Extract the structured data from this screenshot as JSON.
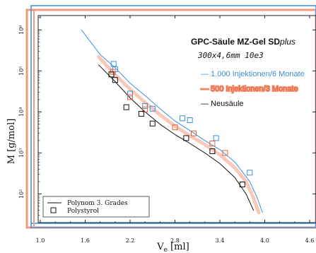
{
  "chart_data": {
    "type": "line",
    "title": "GPC-Säule MZ-Gel SDplus",
    "subtitle": "300x4,6mm 10e3",
    "xlabel": "Ve [ml]",
    "ylabel": "M [g/mol]",
    "xlim": [
      1.0,
      4.6
    ],
    "ylim_log10": [
      1.3,
      6.35
    ],
    "x_ticks": [
      "1.0",
      "1.6",
      "2.2",
      "2.8",
      "3.4",
      "4.0",
      "4.6"
    ],
    "x_tick_values": [
      1.0,
      1.6,
      2.2,
      2.8,
      3.4,
      4.0,
      4.6
    ],
    "y_ticks": [
      "10²",
      "10³",
      "10⁴",
      "10⁵",
      "10⁶"
    ],
    "y_tick_values": [
      100,
      1000,
      10000,
      100000,
      1000000
    ],
    "y_scale": "log",
    "grid": false,
    "legend_position": "top-right",
    "colors": {
      "series_1000": "#3b8fd9",
      "series_500": "#f29a7d",
      "series_new": "#111111",
      "frame_blue": "#3b8fd9",
      "frame_orange": "#f29a7d"
    },
    "series": [
      {
        "name": "1.000 Injektionen/6 Monate",
        "color": "#3b8fd9",
        "curve": [
          [
            1.55,
            1000000
          ],
          [
            1.8,
            250000
          ],
          [
            2.0,
            120000
          ],
          [
            2.2,
            50000
          ],
          [
            2.4,
            25000
          ],
          [
            2.6,
            12000
          ],
          [
            2.8,
            6000
          ],
          [
            3.0,
            3500
          ],
          [
            3.2,
            2000
          ],
          [
            3.4,
            1200
          ],
          [
            3.6,
            600
          ],
          [
            3.8,
            200
          ],
          [
            3.9,
            80
          ],
          [
            3.97,
            35
          ]
        ],
        "points": [
          [
            1.98,
            148000
          ],
          [
            2.0,
            110000
          ],
          [
            2.2,
            28000
          ],
          [
            2.4,
            14000
          ],
          [
            2.5,
            12000
          ],
          [
            2.9,
            7000
          ],
          [
            3.0,
            6300
          ],
          [
            3.35,
            2300
          ],
          [
            3.8,
            330
          ]
        ]
      },
      {
        "name": "500 Injektionen/3 Monate",
        "color": "#f29a7d",
        "curve": [
          [
            1.78,
            220000
          ],
          [
            2.0,
            80000
          ],
          [
            2.2,
            36000
          ],
          [
            2.4,
            17000
          ],
          [
            2.6,
            8500
          ],
          [
            2.8,
            4500
          ],
          [
            3.0,
            2600
          ],
          [
            3.2,
            1600
          ],
          [
            3.4,
            900
          ],
          [
            3.6,
            430
          ],
          [
            3.75,
            200
          ],
          [
            3.85,
            80
          ],
          [
            3.92,
            35
          ]
        ],
        "points": [
          [
            1.97,
            95000
          ],
          [
            2.2,
            23000
          ],
          [
            2.4,
            11500
          ],
          [
            2.8,
            4200
          ],
          [
            3.05,
            3000
          ],
          [
            3.3,
            1700
          ],
          [
            3.47,
            1000
          ]
        ]
      },
      {
        "name": "Neusäule",
        "color": "#111111",
        "curve": [
          [
            1.78,
            140000
          ],
          [
            2.0,
            55000
          ],
          [
            2.2,
            22000
          ],
          [
            2.4,
            10000
          ],
          [
            2.6,
            5000
          ],
          [
            2.8,
            2800
          ],
          [
            3.0,
            1700
          ],
          [
            3.2,
            1000
          ],
          [
            3.4,
            550
          ],
          [
            3.6,
            250
          ],
          [
            3.75,
            100
          ],
          [
            3.85,
            40
          ]
        ],
        "points": [
          [
            1.95,
            82000
          ],
          [
            2.0,
            60000
          ],
          [
            2.15,
            13000
          ],
          [
            2.35,
            9000
          ],
          [
            2.5,
            5200
          ],
          [
            2.95,
            2300
          ],
          [
            3.3,
            1100
          ],
          [
            3.7,
            170
          ]
        ]
      }
    ],
    "legend_series_labels": [
      "— 1.000 Injektionen/6 Monate",
      "— 500 Injektionen/3 Monate",
      "— Neusäule"
    ],
    "lower_legend": [
      {
        "symbol": "line",
        "label": "Polynom 3. Grades"
      },
      {
        "symbol": "square",
        "label": "Polystyrol"
      }
    ]
  }
}
